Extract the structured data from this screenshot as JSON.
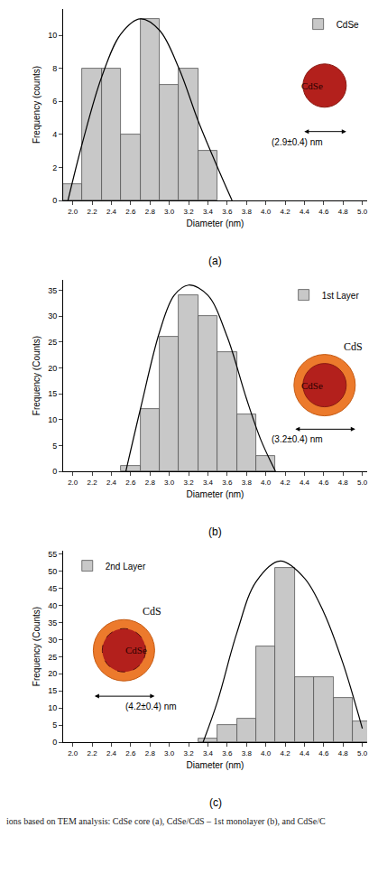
{
  "chart_data": [
    {
      "type": "histogram",
      "panel": "(a)",
      "xlabel": "Diameter (nm)",
      "ylabel": "Frequency (counts)",
      "xlim": [
        1.9,
        5.05
      ],
      "xticks": [
        {
          "value": 2.0,
          "label": "2.0"
        },
        {
          "value": 2.2,
          "label": "2.2"
        },
        {
          "value": 2.4,
          "label": "2.4"
        },
        {
          "value": 2.6,
          "label": "2.6"
        },
        {
          "value": 2.8,
          "label": "2.8"
        },
        {
          "value": 3.0,
          "label": "3.0"
        },
        {
          "value": 3.2,
          "label": "3.2"
        },
        {
          "value": 3.4,
          "label": "3.4"
        },
        {
          "value": 3.6,
          "label": "3.6"
        },
        {
          "value": 3.8,
          "label": "3.8"
        },
        {
          "value": 4.0,
          "label": "4.0"
        },
        {
          "value": 4.2,
          "label": "4.2"
        },
        {
          "value": 4.4,
          "label": "4.4"
        },
        {
          "value": 4.6,
          "label": "4.6"
        },
        {
          "value": 4.8,
          "label": "4.8"
        },
        {
          "value": 5.0,
          "label": "5.0"
        }
      ],
      "ylim": [
        0,
        11.6
      ],
      "yticks": [
        0,
        2,
        4,
        6,
        8,
        10
      ],
      "legend": "upper right",
      "series": [
        {
          "name": "CdSe",
          "type": "bar",
          "color": "#c8c8c8",
          "bins": [
            1.9,
            2.1,
            2.3,
            2.5,
            2.7,
            2.9,
            3.1,
            3.3,
            3.5
          ],
          "values": [
            1,
            8,
            8,
            4,
            11,
            7,
            8,
            3
          ]
        },
        {
          "type": "line",
          "color": "#000000",
          "x": [
            1.95,
            2.1,
            2.3,
            2.5,
            2.7,
            2.9,
            3.1,
            3.3,
            3.5,
            3.65
          ],
          "values": [
            0,
            3.5,
            7.5,
            10.1,
            11,
            10.3,
            8,
            4.8,
            2,
            0
          ]
        }
      ],
      "inset": {
        "labels": [
          "CdSe"
        ],
        "size_label": "(2.9±0.4) nm"
      }
    },
    {
      "type": "histogram",
      "panel": "(b)",
      "xlabel": "Diameter (nm)",
      "ylabel": "Frequency (Counts)",
      "xlim": [
        1.9,
        5.05
      ],
      "xticks": [
        {
          "value": 2.0,
          "label": "2.0"
        },
        {
          "value": 2.2,
          "label": "2.2"
        },
        {
          "value": 2.4,
          "label": "2.4"
        },
        {
          "value": 2.6,
          "label": "2.6"
        },
        {
          "value": 2.8,
          "label": "2.8"
        },
        {
          "value": 3.0,
          "label": "3.0"
        },
        {
          "value": 3.2,
          "label": "3.2"
        },
        {
          "value": 3.4,
          "label": "3.4"
        },
        {
          "value": 3.6,
          "label": "3.6"
        },
        {
          "value": 3.8,
          "label": "3.8"
        },
        {
          "value": 4.0,
          "label": "4.0"
        },
        {
          "value": 4.2,
          "label": "4.2"
        },
        {
          "value": 4.4,
          "label": "4.4"
        },
        {
          "value": 4.6,
          "label": "4.6"
        },
        {
          "value": 4.8,
          "label": "4.8"
        },
        {
          "value": 5.0,
          "label": "5.0"
        }
      ],
      "ylim": [
        0,
        37
      ],
      "yticks": [
        0,
        5,
        10,
        15,
        20,
        25,
        30,
        35
      ],
      "legend": "upper right",
      "series": [
        {
          "name": "1st Layer",
          "type": "bar",
          "color": "#c8c8c8",
          "bins": [
            2.5,
            2.7,
            2.9,
            3.1,
            3.3,
            3.5,
            3.7,
            3.9,
            4.1
          ],
          "values": [
            1,
            12,
            26,
            34,
            30,
            23,
            11,
            3
          ]
        },
        {
          "type": "line",
          "color": "#000000",
          "x": [
            2.55,
            2.7,
            2.9,
            3.05,
            3.2,
            3.4,
            3.6,
            3.8,
            3.95,
            4.1
          ],
          "values": [
            0,
            12,
            27,
            34,
            36,
            34,
            26,
            14,
            6,
            0
          ]
        }
      ],
      "inset": {
        "labels": [
          "CdSe",
          "CdS"
        ],
        "size_label": "(3.2±0.4) nm"
      }
    },
    {
      "type": "histogram",
      "panel": "(c)",
      "xlabel": "Diameter (nm)",
      "ylabel": "Frequency (Counts)",
      "xlim": [
        1.9,
        5.05
      ],
      "xticks": [
        {
          "value": 2.0,
          "label": "2.0"
        },
        {
          "value": 2.2,
          "label": "2.2"
        },
        {
          "value": 2.4,
          "label": "2.4"
        },
        {
          "value": 2.6,
          "label": "2.6"
        },
        {
          "value": 2.8,
          "label": "2.8"
        },
        {
          "value": 3.0,
          "label": "3.0"
        },
        {
          "value": 3.2,
          "label": "3.2"
        },
        {
          "value": 3.4,
          "label": "3.4"
        },
        {
          "value": 3.6,
          "label": "3.6"
        },
        {
          "value": 3.8,
          "label": "3.8"
        },
        {
          "value": 4.0,
          "label": "4.0"
        },
        {
          "value": 4.2,
          "label": "4.2"
        },
        {
          "value": 4.4,
          "label": "4.4"
        },
        {
          "value": 4.6,
          "label": "4.6"
        },
        {
          "value": 4.8,
          "label": "4.8"
        },
        {
          "value": 5.0,
          "label": "5.0"
        }
      ],
      "ylim": [
        0,
        56
      ],
      "yticks": [
        0,
        5,
        10,
        15,
        20,
        25,
        30,
        35,
        40,
        45,
        50,
        55
      ],
      "legend": "upper left",
      "series": [
        {
          "name": "2nd Layer",
          "type": "bar",
          "color": "#c8c8c8",
          "bins": [
            3.3,
            3.5,
            3.7,
            3.9,
            4.1,
            4.3,
            4.5,
            4.7,
            4.9,
            5.1
          ],
          "values": [
            1,
            5,
            7,
            28,
            51,
            19,
            19,
            13,
            6
          ]
        },
        {
          "type": "line",
          "color": "#000000",
          "x": [
            3.35,
            3.5,
            3.7,
            3.9,
            4.15,
            4.4,
            4.6,
            4.8,
            5.0
          ],
          "values": [
            0,
            12,
            32,
            47,
            53,
            48,
            38,
            23,
            4
          ]
        }
      ],
      "inset": {
        "labels": [
          "CdSe",
          "CdS"
        ],
        "size_label": "(4.2±0.4) nm"
      }
    }
  ],
  "caption": "ions based on TEM analysis: CdSe core (a), CdSe/CdS – 1st monolayer (b), and CdSe/C"
}
